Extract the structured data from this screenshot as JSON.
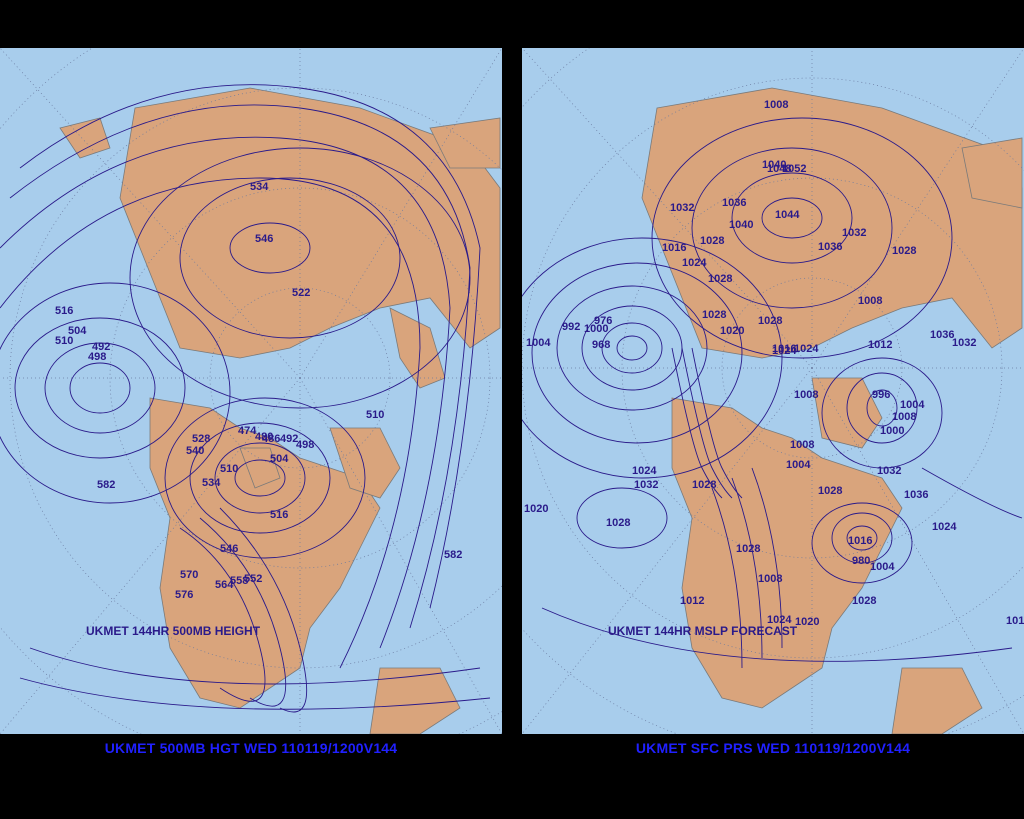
{
  "panels": [
    {
      "id": "left",
      "map_caption": "UKMET 144HR 500MB HEIGHT",
      "footer_title": "UKMET 500MB HGT WED 110119/1200V144",
      "contour_labels": [
        "534",
        "546",
        "522",
        "516",
        "504",
        "510",
        "492",
        "498",
        "510",
        "474",
        "480",
        "486",
        "492",
        "498",
        "528",
        "540",
        "510",
        "534",
        "504",
        "582",
        "516",
        "546",
        "570",
        "564",
        "558",
        "552",
        "576",
        "582"
      ]
    },
    {
      "id": "right",
      "map_caption": "UKMET 144HR MSLP FORECAST",
      "footer_title": "UKMET SFC PRS WED 110119/1200V144",
      "contour_labels": [
        "1008",
        "1040",
        "1048",
        "1052",
        "1032",
        "1036",
        "1044",
        "1016",
        "1028",
        "1040",
        "1036",
        "1032",
        "1028",
        "1024",
        "1028",
        "1008",
        "1028",
        "976",
        "1000",
        "992",
        "1004",
        "968",
        "1020",
        "1028",
        "1016",
        "1024",
        "1024",
        "1008",
        "1036",
        "1032",
        "1012",
        "996",
        "1004",
        "1008",
        "1000",
        "1008",
        "1004",
        "1024",
        "1032",
        "1028",
        "1036",
        "1028",
        "1020",
        "1028",
        "1032",
        "1024",
        "1028",
        "1016",
        "980",
        "1004",
        "1008",
        "1028",
        "1012",
        "1024",
        "1020",
        "1012"
      ]
    }
  ],
  "colors": {
    "ocean": "#a8cdec",
    "land": "#d9a47c",
    "contour": "#2a1a8a",
    "footer_text": "#2020ff",
    "background": "#000000"
  }
}
